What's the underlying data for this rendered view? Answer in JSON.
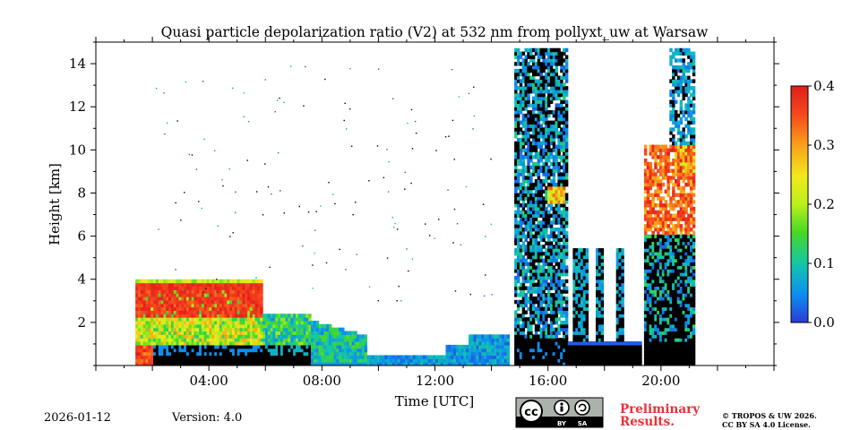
{
  "chart_data": {
    "type": "heatmap",
    "title": "Quasi particle depolarization ratio (V2) at 532 nm from pollyxt_uw at Warsaw",
    "xlabel": "Time [UTC]",
    "ylabel": "Height [km]",
    "xlim_hours": [
      0,
      24
    ],
    "ylim_km": [
      0,
      15
    ],
    "x_ticks": [
      {
        "hour": 4,
        "label": "04:00"
      },
      {
        "hour": 8,
        "label": "08:00"
      },
      {
        "hour": 12,
        "label": "12:00"
      },
      {
        "hour": 16,
        "label": "16:00"
      },
      {
        "hour": 20,
        "label": "20:00"
      }
    ],
    "y_ticks": [
      {
        "value": 2,
        "label": "2"
      },
      {
        "value": 4,
        "label": "4"
      },
      {
        "value": 6,
        "label": "6"
      },
      {
        "value": 8,
        "label": "8"
      },
      {
        "value": 10,
        "label": "10"
      },
      {
        "value": 12,
        "label": "12"
      },
      {
        "value": 14,
        "label": "14"
      }
    ],
    "colorbar": {
      "min": 0.0,
      "max": 0.4,
      "ticks": [
        {
          "value": 0.0,
          "label": "0.0"
        },
        {
          "value": 0.1,
          "label": "0.1"
        },
        {
          "value": 0.2,
          "label": "0.2"
        },
        {
          "value": 0.3,
          "label": "0.3"
        },
        {
          "value": 0.4,
          "label": "0.4"
        }
      ],
      "colors": [
        "#2a3bd8",
        "#0c8ff0",
        "#13c7a7",
        "#46d824",
        "#b9f01c",
        "#f3e91c",
        "#f9a01a",
        "#f5481c",
        "#e21d1d"
      ]
    },
    "regions": [
      {
        "label": "Boundary layer aerosol (depol ~0.3-0.4)",
        "t0": 1.4,
        "t1": 5.9,
        "h0": 2.2,
        "h1": 3.9,
        "value": 0.36
      },
      {
        "label": "Mixed aerosol (depol ~0.1-0.2)",
        "t0": 1.4,
        "t1": 9.5,
        "h0": 0.6,
        "h1": 2.4,
        "value": 0.15
      },
      {
        "label": "Low signal near ground (black)",
        "t0": 2.0,
        "t1": 7.6,
        "h0": 0.1,
        "h1": 0.9,
        "value": -1
      },
      {
        "label": "Thin low aerosol",
        "t0": 9.5,
        "t1": 14.5,
        "h0": 0.05,
        "h1": 1.5,
        "value": 0.05
      },
      {
        "label": "Cloud band 14:50-16:40 (depol ~0.05)",
        "t0": 14.8,
        "t1": 16.7,
        "h0": 0.5,
        "h1": 14.8,
        "value": 0.06
      },
      {
        "label": "Cloud 17:00-18:30",
        "t0": 16.8,
        "t1": 18.6,
        "h0": 0.5,
        "h1": 5.5,
        "value": 0.05
      },
      {
        "label": "Ice cloud 19:20-21:10 (depol ~0.3-0.4)",
        "t0": 19.4,
        "t1": 21.2,
        "h0": 6.0,
        "h1": 10.2,
        "value": 0.35
      },
      {
        "label": "Cloud 19:20-21:10 lower",
        "t0": 19.4,
        "t1": 21.2,
        "h0": 1.0,
        "h1": 6.0,
        "value": 0.06
      }
    ]
  },
  "footer": {
    "date": "2026-01-12",
    "version": "Version: 4.0",
    "license_badge": {
      "cc": "cc",
      "by": "BY",
      "sa": "SA"
    },
    "preliminary_line1": "Preliminary",
    "preliminary_line2": "Results.",
    "copyright_line1": "© TROPOS & UW 2026.",
    "copyright_line2": "CC BY SA 4.0 License."
  }
}
